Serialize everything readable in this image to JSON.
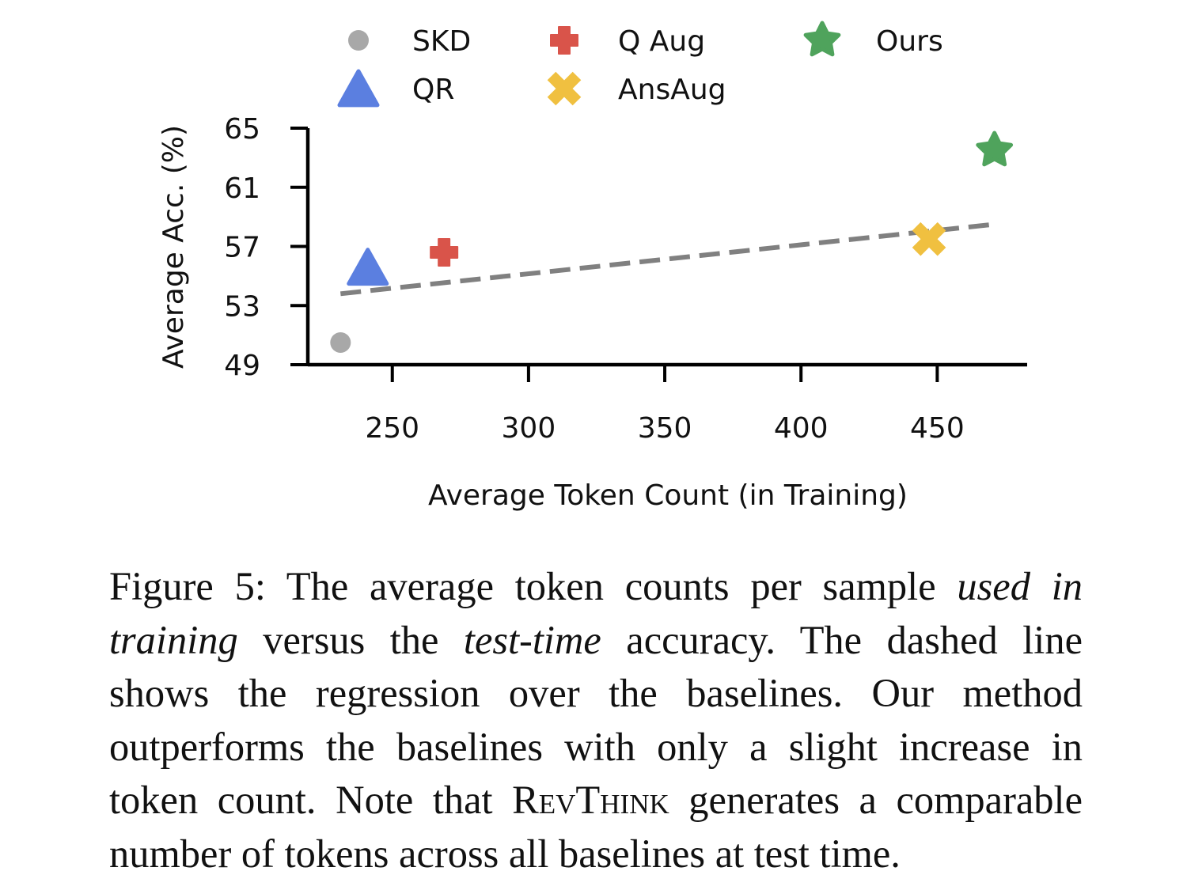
{
  "chart_data": {
    "type": "scatter",
    "xlabel": "Average Token Count (in Training)",
    "ylabel": "Average Acc. (%)",
    "xlim": [
      219,
      483
    ],
    "ylim": [
      49,
      65
    ],
    "x_ticks": [
      250,
      300,
      350,
      400,
      450
    ],
    "y_ticks": [
      49,
      53,
      57,
      61,
      65
    ],
    "legend_position": "top",
    "series": [
      {
        "name": "SKD",
        "marker": "circle",
        "color": "#a8a8a8",
        "x": 231,
        "y": 50.5
      },
      {
        "name": "QR",
        "marker": "triangle",
        "color": "#5b7fe0",
        "x": 241,
        "y": 55.6
      },
      {
        "name": "Q Aug",
        "marker": "plus",
        "color": "#d9544a",
        "x": 269,
        "y": 56.6
      },
      {
        "name": "AnsAug",
        "marker": "x",
        "color": "#f0c040",
        "x": 447,
        "y": 57.5
      },
      {
        "name": "Ours",
        "marker": "star",
        "color": "#4fa35c",
        "x": 471,
        "y": 63.5
      }
    ],
    "regression_line": {
      "style": "dashed",
      "color": "#808080",
      "x": [
        231,
        471
      ],
      "y": [
        53.8,
        58.5
      ]
    }
  },
  "caption": {
    "figure_label": "Figure 5:",
    "part1": " The average token counts per sample ",
    "em1": "used in training",
    "part2": " versus the ",
    "em2": "test-time",
    "part3": " accuracy. The dashed line shows the regression over the baselines.  Our method outperforms the baselines with only a slight increase in token count. Note that ",
    "method_name": "RevThink",
    "part4": " generates a comparable number of tokens across all baselines at test time."
  }
}
